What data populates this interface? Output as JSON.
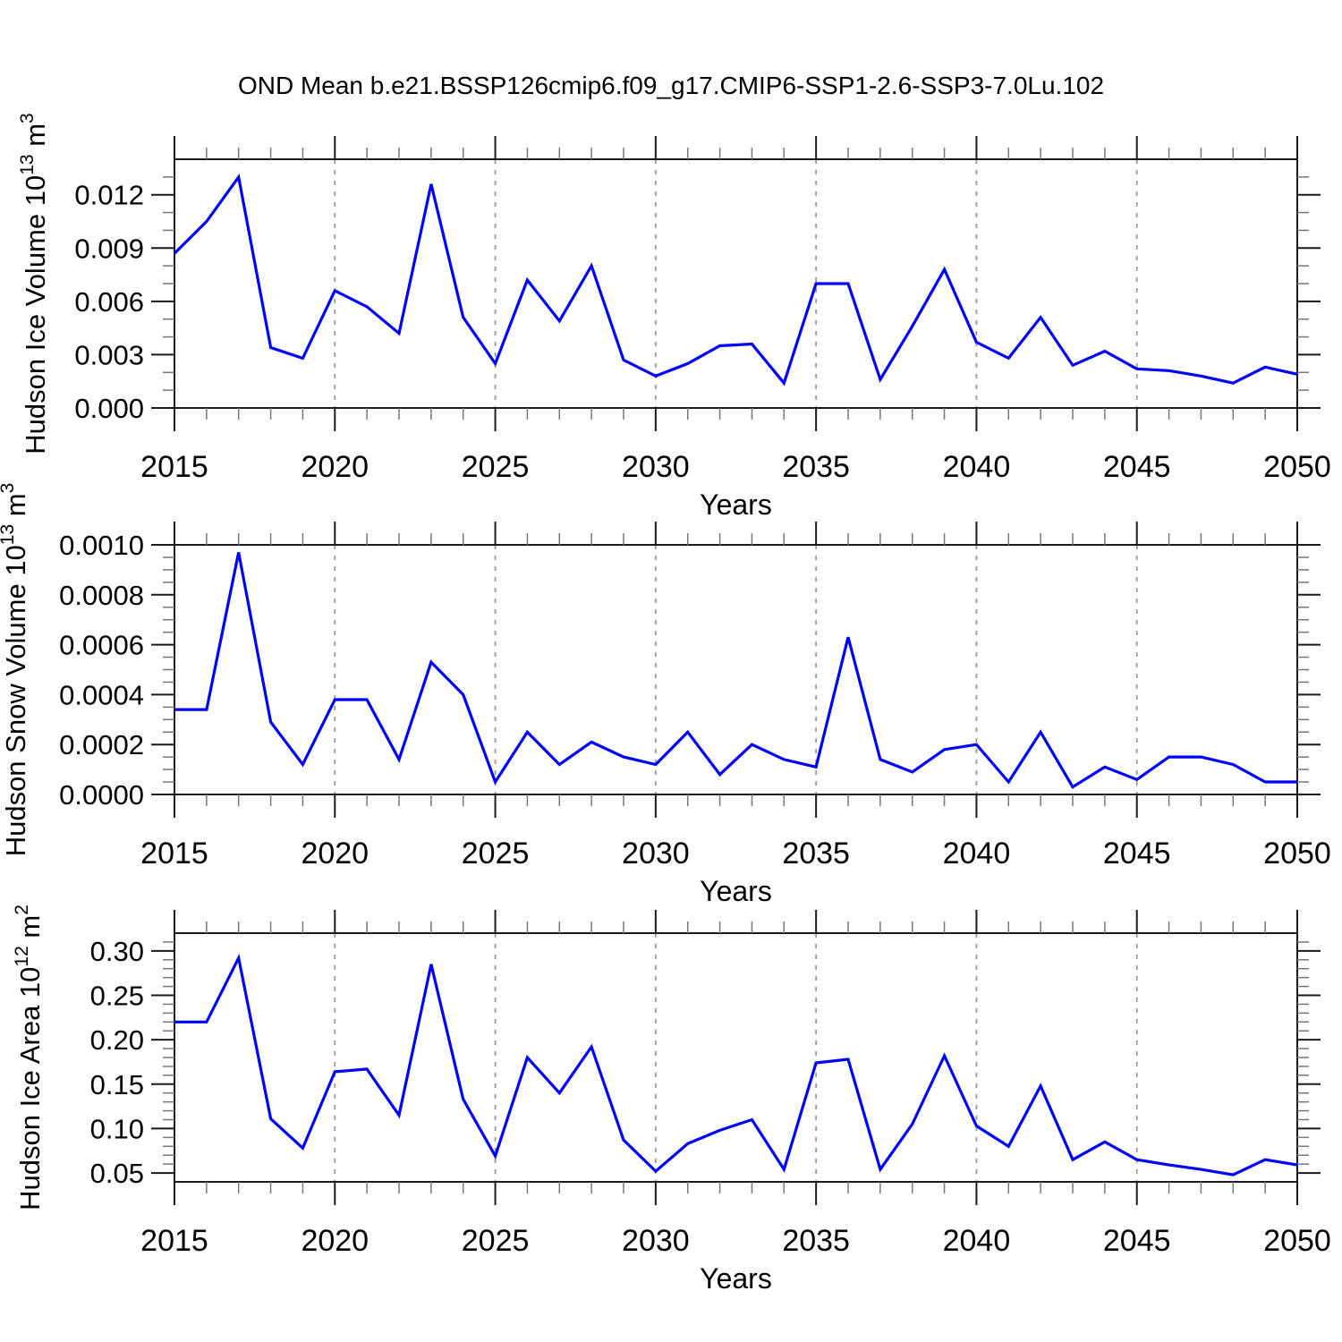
{
  "figure": {
    "title": "OND Mean b.e21.BSSP126cmip6.f09_g17.CMIP6-SSP1-2.6-SSP3-7.0Lu.102",
    "line_color": "#0000ff",
    "grid_color": "#999999",
    "axis_color": "#1a1a1a",
    "minor_tick_color": "#777777"
  },
  "years": [
    2015,
    2016,
    2017,
    2018,
    2019,
    2020,
    2021,
    2022,
    2023,
    2024,
    2025,
    2026,
    2027,
    2028,
    2029,
    2030,
    2031,
    2032,
    2033,
    2034,
    2035,
    2036,
    2037,
    2038,
    2039,
    2040,
    2041,
    2042,
    2043,
    2044,
    2045,
    2046,
    2047,
    2048,
    2049,
    2050
  ],
  "chart_data": [
    {
      "type": "line",
      "panel": "hudson-ice-volume",
      "ylabel_prefix": "Hudson Ice Volume 10",
      "ylabel_exp": "13",
      "ylabel_unit": " m",
      "ylabel_unit_exp": "3",
      "xlabel": "Years",
      "x_range": [
        2015,
        2050
      ],
      "x_step": 1,
      "values": [
        0.0087,
        0.0105,
        0.013,
        0.0034,
        0.0028,
        0.0066,
        0.0057,
        0.0042,
        0.0126,
        0.0051,
        0.0025,
        0.0072,
        0.0049,
        0.008,
        0.0027,
        0.0018,
        0.0025,
        0.0035,
        0.0036,
        0.0014,
        0.007,
        0.007,
        0.0016,
        0.0046,
        0.0078,
        0.0037,
        0.0028,
        0.0051,
        0.0024,
        0.0032,
        0.0022,
        0.0021,
        0.0018,
        0.0014,
        0.0023,
        0.0019
      ],
      "ylim": [
        0,
        0.014
      ],
      "yticks": [
        0,
        0.003,
        0.006,
        0.009,
        0.012
      ],
      "ytick_labels": [
        "0.000",
        "0.003",
        "0.006",
        "0.009",
        "0.012"
      ],
      "y_minor_step": 0.001,
      "xticks": [
        2015,
        2020,
        2025,
        2030,
        2035,
        2040,
        2045,
        2050
      ],
      "xtick_labels": [
        "2015",
        "2020",
        "2025",
        "2030",
        "2035",
        "2040",
        "2045",
        "2050"
      ],
      "x_minor_step": 1,
      "grid_years": [
        2020,
        2025,
        2030,
        2035,
        2040,
        2045
      ],
      "grid": "vertical-dashed",
      "legend": "none"
    },
    {
      "type": "line",
      "panel": "hudson-snow-volume",
      "ylabel_prefix": "Hudson Snow Volume 10",
      "ylabel_exp": "13",
      "ylabel_unit": " m",
      "ylabel_unit_exp": "3",
      "xlabel": "Years",
      "x_range": [
        2015,
        2050
      ],
      "x_step": 1,
      "values": [
        0.00034,
        0.00034,
        0.00097,
        0.00029,
        0.00012,
        0.00038,
        0.00038,
        0.00014,
        0.00053,
        0.0004,
        5e-05,
        0.00025,
        0.00012,
        0.00021,
        0.00015,
        0.00012,
        0.00025,
        8e-05,
        0.0002,
        0.00014,
        0.00011,
        0.00063,
        0.00014,
        9e-05,
        0.00018,
        0.0002,
        5e-05,
        0.00025,
        3e-05,
        0.00011,
        6e-05,
        0.00015,
        0.00015,
        0.00012,
        5e-05,
        5e-05
      ],
      "ylim": [
        0,
        0.001
      ],
      "yticks": [
        0,
        0.0002,
        0.0004,
        0.0006,
        0.0008,
        0.001
      ],
      "ytick_labels": [
        "0.0000",
        "0.0002",
        "0.0004",
        "0.0006",
        "0.0008",
        "0.0010"
      ],
      "y_minor_step": 5e-05,
      "xticks": [
        2015,
        2020,
        2025,
        2030,
        2035,
        2040,
        2045,
        2050
      ],
      "xtick_labels": [
        "2015",
        "2020",
        "2025",
        "2030",
        "2035",
        "2040",
        "2045",
        "2050"
      ],
      "x_minor_step": 1,
      "grid_years": [
        2020,
        2025,
        2030,
        2035,
        2040,
        2045
      ],
      "grid": "vertical-dashed",
      "legend": "none"
    },
    {
      "type": "line",
      "panel": "hudson-ice-area",
      "ylabel_prefix": "Hudson Ice Area 10",
      "ylabel_exp": "12",
      "ylabel_unit": " m",
      "ylabel_unit_exp": "2",
      "xlabel": "Years",
      "x_range": [
        2015,
        2050
      ],
      "x_step": 1,
      "values": [
        0.22,
        0.22,
        0.292,
        0.111,
        0.078,
        0.164,
        0.167,
        0.115,
        0.285,
        0.133,
        0.069,
        0.18,
        0.14,
        0.192,
        0.087,
        0.052,
        0.083,
        0.098,
        0.11,
        0.054,
        0.174,
        0.178,
        0.054,
        0.105,
        0.182,
        0.103,
        0.08,
        0.148,
        0.065,
        0.085,
        0.065,
        0.059,
        0.054,
        0.048,
        0.065,
        0.059
      ],
      "ylim": [
        0.04,
        0.32
      ],
      "yticks": [
        0.05,
        0.1,
        0.15,
        0.2,
        0.25,
        0.3
      ],
      "ytick_labels": [
        "0.05",
        "0.10",
        "0.15",
        "0.20",
        "0.25",
        "0.30"
      ],
      "y_minor_step": 0.01,
      "xticks": [
        2015,
        2020,
        2025,
        2030,
        2035,
        2040,
        2045,
        2050
      ],
      "xtick_labels": [
        "2015",
        "2020",
        "2025",
        "2030",
        "2035",
        "2040",
        "2045",
        "2050"
      ],
      "x_minor_step": 1,
      "grid_years": [
        2020,
        2025,
        2030,
        2035,
        2040,
        2045
      ],
      "grid": "vertical-dashed",
      "legend": "none"
    }
  ]
}
